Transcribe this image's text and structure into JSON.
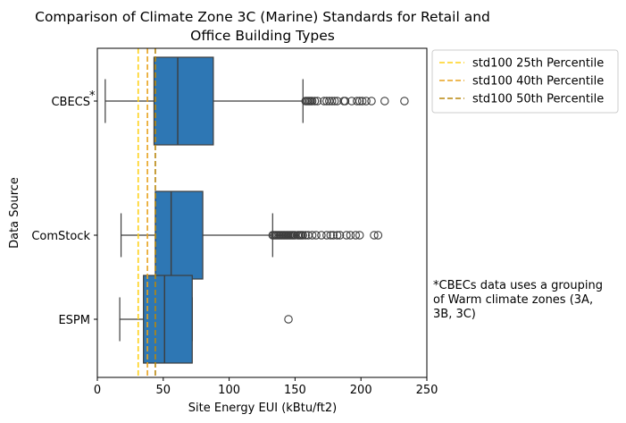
{
  "chart_data": {
    "type": "box",
    "orientation": "horizontal",
    "title_line1": "Comparison of Climate Zone 3C (Marine) Standards for Retail and",
    "title_line2": "Office Building Types",
    "xlabel": "Site Energy EUI (kBtu/ft2)",
    "ylabel": "Data Source",
    "xlim": [
      0,
      250
    ],
    "xticks": [
      "0",
      "50",
      "100",
      "150",
      "200",
      "250"
    ],
    "categories": [
      "CBECS",
      "ComStock",
      "ESPM"
    ],
    "category_marker": "*",
    "box_color": "#2e77b4",
    "boxes": [
      {
        "name": "CBECS",
        "whisker_low": 6,
        "q1": 43,
        "median": 61,
        "q3": 88,
        "whisker_high": 156,
        "outliers": [
          158,
          159,
          160,
          161,
          162,
          163,
          165,
          167,
          172,
          174,
          176,
          178,
          180,
          182,
          187,
          188,
          193,
          197,
          199,
          201,
          204,
          208,
          218,
          233
        ]
      },
      {
        "name": "ComStock",
        "whisker_low": 18,
        "q1": 44,
        "median": 56,
        "q3": 80,
        "whisker_high": 133,
        "outliers": [
          133,
          134,
          135,
          136,
          137,
          138,
          139,
          140,
          141,
          142,
          143,
          144,
          145,
          146,
          147,
          148,
          149,
          150,
          152,
          153,
          154,
          155,
          156,
          158,
          160,
          163,
          166,
          170,
          174,
          177,
          179,
          182,
          184,
          189,
          192,
          196,
          199,
          210,
          213
        ]
      },
      {
        "name": "ESPM",
        "whisker_low": 17,
        "q1": 35,
        "median": 51,
        "q3": 72,
        "whisker_high": 72,
        "outliers": [
          145
        ]
      }
    ],
    "reference_lines": [
      {
        "name": "std100 25th Percentile",
        "value": 31,
        "color": "#ffd21a"
      },
      {
        "name": "std100 40th Percentile",
        "value": 38,
        "color": "#e8a21e"
      },
      {
        "name": "std100 50th Percentile",
        "value": 44,
        "color": "#b8860b"
      }
    ],
    "legend_position": "outside upper-right",
    "annotation": "*CBECs data uses a grouping of Warm climate zones (3A, 3B, 3C)",
    "annotation_lines": [
      "*CBECs data uses a grouping",
      "of Warm climate zones (3A,",
      "3B, 3C)"
    ]
  }
}
